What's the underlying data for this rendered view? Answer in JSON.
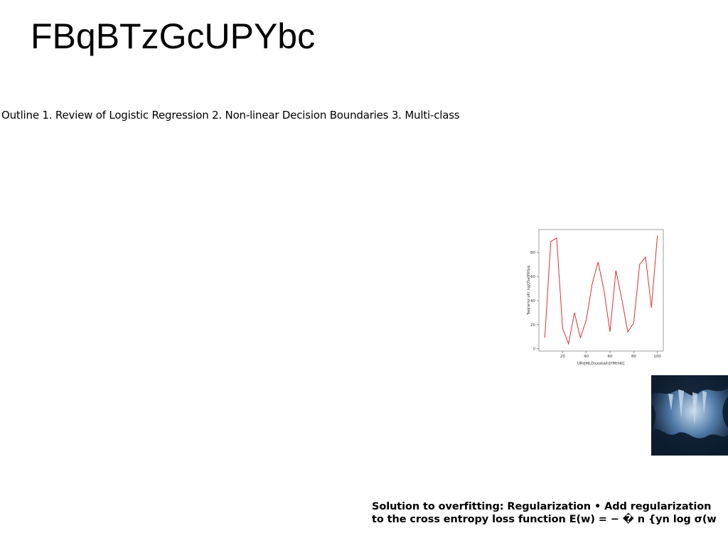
{
  "slide": {
    "title": "FBqBTzGcUPYbc",
    "outline": "Outline 1. Review of Logistic Regression 2. Non-linear Decision Boundaries 3. Multi-class",
    "note_line1": "Solution to overfitting: Regularization • Add regularization",
    "note_line2": "to the cross entropy loss function E(w) = − � n {yn log σ(w"
  },
  "chart_data": {
    "type": "line",
    "xlabel": "URrJMLDxzokwIrJYMthKC",
    "ylabel": "Twqrwrsz uKr ngjOSaNSHpq",
    "x": [
      5,
      10,
      15,
      20,
      25,
      30,
      35,
      40,
      45,
      50,
      55,
      60,
      65,
      70,
      75,
      80,
      85,
      90,
      95,
      100
    ],
    "series": [
      {
        "color": "#e03030",
        "values": [
          9,
          89,
          92,
          17,
          4,
          30,
          9,
          24,
          54,
          72,
          48,
          14,
          65,
          41,
          14,
          21,
          70,
          76,
          34,
          94
        ]
      }
    ],
    "xlim": [
      0,
      105
    ],
    "ylim": [
      -2,
      99
    ],
    "xticks": [
      20,
      40,
      60,
      80,
      100
    ],
    "yticks": [
      0,
      20,
      40,
      60,
      80
    ],
    "grid": false
  },
  "image": {
    "subject": "blue ice cave",
    "colors": [
      "#0d1c2e",
      "#4f7aa6",
      "#c9dcee"
    ]
  }
}
